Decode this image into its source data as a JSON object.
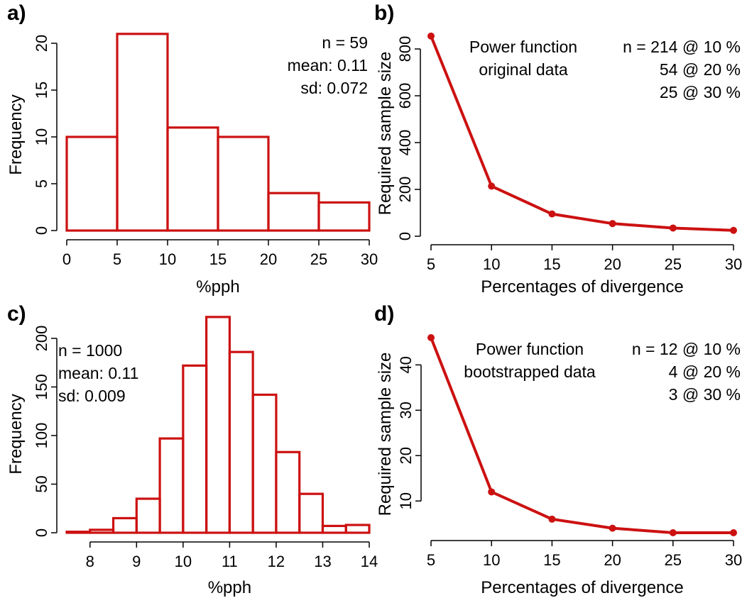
{
  "colors": {
    "series": "#cc1111",
    "axis": "#000000",
    "background": "#ffffff"
  },
  "chart_data": [
    {
      "panel": "a)",
      "type": "histogram",
      "xlabel": "%pph",
      "ylabel": "Frequency",
      "xlim": [
        0,
        30
      ],
      "ylim": [
        0,
        20
      ],
      "x_ticks": [
        0,
        5,
        10,
        15,
        20,
        25,
        30
      ],
      "y_ticks": [
        0,
        5,
        10,
        15,
        20
      ],
      "bins": [
        [
          0,
          5
        ],
        [
          5,
          10
        ],
        [
          10,
          15
        ],
        [
          15,
          20
        ],
        [
          20,
          25
        ],
        [
          25,
          30
        ]
      ],
      "values": [
        10,
        21,
        11,
        10,
        4,
        3
      ],
      "annotations": [
        "n =  59",
        "mean:  0.11",
        "sd:  0.072"
      ]
    },
    {
      "panel": "b)",
      "type": "line",
      "xlabel": "Percentages of divergence",
      "ylabel": "Required sample size",
      "xlim": [
        5,
        30
      ],
      "ylim": [
        0,
        800
      ],
      "x_ticks": [
        5,
        10,
        15,
        20,
        25,
        30
      ],
      "y_ticks": [
        0,
        200,
        400,
        600,
        800
      ],
      "x": [
        5,
        10,
        15,
        20,
        25,
        30
      ],
      "y": [
        855,
        214,
        95,
        54,
        35,
        25
      ],
      "annotations": [
        "Power function",
        "original data",
        "n = 214 @ 10 %",
        "54 @ 20 %",
        "25 @ 30 %"
      ]
    },
    {
      "panel": "c)",
      "type": "histogram",
      "xlabel": "%pph",
      "ylabel": "Frequency",
      "xlim": [
        7.5,
        14
      ],
      "ylim": [
        0,
        200
      ],
      "x_ticks": [
        8,
        9,
        10,
        11,
        12,
        13,
        14
      ],
      "y_ticks": [
        0,
        50,
        100,
        150,
        200
      ],
      "bins": [
        [
          7.5,
          8
        ],
        [
          8,
          8.5
        ],
        [
          8.5,
          9
        ],
        [
          9,
          9.5
        ],
        [
          9.5,
          10
        ],
        [
          10,
          10.5
        ],
        [
          10.5,
          11
        ],
        [
          11,
          11.5
        ],
        [
          11.5,
          12
        ],
        [
          12,
          12.5
        ],
        [
          12.5,
          13
        ],
        [
          13,
          13.5
        ],
        [
          13.5,
          14
        ]
      ],
      "values": [
        1,
        3,
        15,
        35,
        97,
        172,
        222,
        186,
        142,
        83,
        40,
        7,
        8
      ],
      "annotations": [
        "n = 1000",
        "mean: 0.11",
        "sd: 0.009"
      ]
    },
    {
      "panel": "d)",
      "type": "line",
      "xlabel": "Percentages of divergence",
      "ylabel": "Required sample size",
      "xlim": [
        5,
        30
      ],
      "ylim": [
        3,
        46
      ],
      "x_ticks": [
        5,
        10,
        15,
        20,
        25,
        30
      ],
      "y_ticks": [
        10,
        20,
        30,
        40
      ],
      "x": [
        5,
        10,
        15,
        20,
        25,
        30
      ],
      "y": [
        46,
        12,
        6,
        4,
        3,
        3
      ],
      "annotations": [
        "Power function",
        "bootstrapped data",
        "n = 12 @ 10 %",
        "4 @ 20 %",
        "3 @ 30 %"
      ]
    }
  ]
}
